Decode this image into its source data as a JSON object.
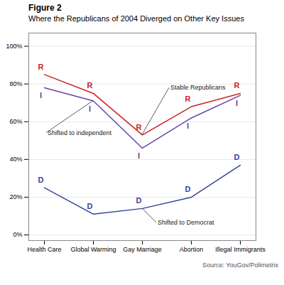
{
  "chart_data": {
    "type": "line",
    "title": "Figure 2",
    "subtitle": "Where the Republicans of 2004 Diverged on Other Key Issues",
    "categories": [
      "Health Care",
      "Global Warming",
      "Gay Marriage",
      "Abortion",
      "Illegal Immigrants"
    ],
    "series": [
      {
        "name": "R",
        "color": "#cc2222",
        "values": [
          85,
          75,
          53,
          68,
          75
        ]
      },
      {
        "name": "I",
        "color": "#6644aa",
        "values": [
          78,
          71,
          46,
          62,
          74
        ]
      },
      {
        "name": "D",
        "color": "#334499",
        "values": [
          25,
          11,
          14,
          20,
          37
        ]
      }
    ],
    "ylim": [
      -3,
      107
    ],
    "yticks": [
      {
        "value": 0,
        "label": "0%"
      },
      {
        "value": 20,
        "label": "20%"
      },
      {
        "value": 40,
        "label": "40%"
      },
      {
        "value": 60,
        "label": "60%"
      },
      {
        "value": 80,
        "label": "80%"
      },
      {
        "value": 100,
        "label": "100%"
      }
    ],
    "grid": true,
    "annotations": [
      {
        "text": "Stable Republicans",
        "x": "Gay Marriage",
        "y": 53
      },
      {
        "text": "Shifted to independent",
        "x": "Global Warming",
        "y": 71
      },
      {
        "text": "Shifted to Democrat",
        "x": "Gay Marriage",
        "y": 14
      }
    ],
    "source": "Source: YouGov/Polimetrix"
  }
}
